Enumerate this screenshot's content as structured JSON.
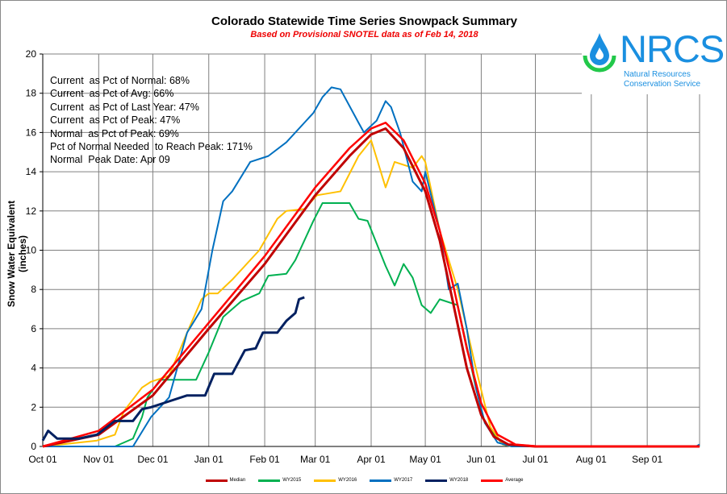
{
  "chart_data": {
    "type": "line",
    "title": "Colorado Statewide Time Series Snowpack Summary",
    "subtitle": "Based on Provisional SNOTEL data as of Feb 14, 2018",
    "xlabel": "",
    "ylabel": "Snow Water Equivalent (inches)",
    "ylim": [
      0,
      20
    ],
    "xlim_days": [
      0,
      364
    ],
    "yticks": [
      "0",
      "2",
      "4",
      "6",
      "8",
      "10",
      "12",
      "14",
      "16",
      "18",
      "20"
    ],
    "xticks": [
      {
        "label": "Oct 01",
        "day": 0
      },
      {
        "label": "Nov 01",
        "day": 31
      },
      {
        "label": "Dec 01",
        "day": 61
      },
      {
        "label": "Jan 01",
        "day": 92
      },
      {
        "label": "Feb 01",
        "day": 123
      },
      {
        "label": "Mar 01",
        "day": 151
      },
      {
        "label": "Apr 01",
        "day": 182
      },
      {
        "label": "May 01",
        "day": 212
      },
      {
        "label": "Jun 01",
        "day": 243
      },
      {
        "label": "Jul 01",
        "day": 273
      },
      {
        "label": "Aug 01",
        "day": 304
      },
      {
        "label": "Sep 01",
        "day": 335
      }
    ],
    "grid": true,
    "legend_position": "bottom",
    "series": [
      {
        "name": "Median",
        "color": "#c00000",
        "width": 3,
        "points": [
          [
            0,
            0
          ],
          [
            31,
            0.6
          ],
          [
            61,
            2.6
          ],
          [
            92,
            6.0
          ],
          [
            123,
            9.3
          ],
          [
            151,
            12.8
          ],
          [
            170,
            14.8
          ],
          [
            182,
            15.9
          ],
          [
            190,
            16.2
          ],
          [
            200,
            15.2
          ],
          [
            212,
            13.0
          ],
          [
            220,
            10.5
          ],
          [
            227,
            7.5
          ],
          [
            235,
            4.0
          ],
          [
            243,
            1.6
          ],
          [
            250,
            0.5
          ],
          [
            258,
            0.1
          ],
          [
            273,
            0
          ],
          [
            364,
            0
          ]
        ]
      },
      {
        "name": "WY2015",
        "color": "#00b050",
        "width": 2,
        "points": [
          [
            0,
            0
          ],
          [
            40,
            0
          ],
          [
            50,
            0.4
          ],
          [
            55,
            1.5
          ],
          [
            58,
            2.5
          ],
          [
            65,
            3.4
          ],
          [
            85,
            3.4
          ],
          [
            92,
            4.8
          ],
          [
            100,
            6.6
          ],
          [
            110,
            7.4
          ],
          [
            120,
            7.8
          ],
          [
            125,
            8.7
          ],
          [
            135,
            8.8
          ],
          [
            140,
            9.5
          ],
          [
            150,
            11.5
          ],
          [
            155,
            12.4
          ],
          [
            170,
            12.4
          ],
          [
            175,
            11.6
          ],
          [
            180,
            11.5
          ],
          [
            190,
            9.2
          ],
          [
            195,
            8.2
          ],
          [
            200,
            9.3
          ],
          [
            205,
            8.6
          ],
          [
            210,
            7.2
          ],
          [
            215,
            6.8
          ],
          [
            220,
            7.5
          ],
          [
            230,
            7.2
          ],
          [
            240,
            3.0
          ],
          [
            245,
            1.2
          ],
          [
            255,
            0.1
          ],
          [
            260,
            0
          ]
        ]
      },
      {
        "name": "WY2016",
        "color": "#ffc000",
        "width": 2,
        "points": [
          [
            0,
            0
          ],
          [
            30,
            0.3
          ],
          [
            40,
            0.6
          ],
          [
            45,
            1.8
          ],
          [
            55,
            3.0
          ],
          [
            60,
            3.3
          ],
          [
            70,
            3.6
          ],
          [
            80,
            5.8
          ],
          [
            88,
            7.5
          ],
          [
            92,
            7.8
          ],
          [
            97,
            7.8
          ],
          [
            105,
            8.5
          ],
          [
            120,
            10.0
          ],
          [
            130,
            11.6
          ],
          [
            135,
            12.0
          ],
          [
            145,
            12.1
          ],
          [
            152,
            12.8
          ],
          [
            165,
            13.0
          ],
          [
            175,
            14.8
          ],
          [
            182,
            15.6
          ],
          [
            190,
            13.2
          ],
          [
            195,
            14.5
          ],
          [
            205,
            14.2
          ],
          [
            210,
            14.8
          ],
          [
            212,
            14.5
          ],
          [
            220,
            11.0
          ],
          [
            230,
            8.0
          ],
          [
            240,
            4.0
          ],
          [
            248,
            1.0
          ],
          [
            255,
            0.1
          ],
          [
            260,
            0
          ],
          [
            364,
            0
          ]
        ]
      },
      {
        "name": "WY2017",
        "color": "#0070c0",
        "width": 2,
        "points": [
          [
            0,
            0
          ],
          [
            50,
            0
          ],
          [
            60,
            1.5
          ],
          [
            70,
            2.5
          ],
          [
            80,
            5.8
          ],
          [
            88,
            7.0
          ],
          [
            94,
            10.0
          ],
          [
            100,
            12.5
          ],
          [
            105,
            13.0
          ],
          [
            115,
            14.5
          ],
          [
            125,
            14.8
          ],
          [
            135,
            15.5
          ],
          [
            150,
            17.0
          ],
          [
            155,
            17.8
          ],
          [
            160,
            18.3
          ],
          [
            165,
            18.2
          ],
          [
            175,
            16.5
          ],
          [
            178,
            16.0
          ],
          [
            185,
            16.6
          ],
          [
            190,
            17.6
          ],
          [
            193,
            17.3
          ],
          [
            198,
            16.0
          ],
          [
            205,
            13.5
          ],
          [
            210,
            13.0
          ],
          [
            212,
            14.0
          ],
          [
            220,
            11.0
          ],
          [
            225,
            8.0
          ],
          [
            230,
            8.3
          ],
          [
            235,
            6.0
          ],
          [
            240,
            3.0
          ],
          [
            245,
            1.2
          ],
          [
            252,
            0.2
          ],
          [
            260,
            0
          ],
          [
            362,
            0
          ],
          [
            364,
            0.1
          ]
        ]
      },
      {
        "name": "WY2018",
        "color": "#002060",
        "width": 3,
        "points": [
          [
            0,
            0.3
          ],
          [
            3,
            0.8
          ],
          [
            8,
            0.4
          ],
          [
            20,
            0.4
          ],
          [
            30,
            0.6
          ],
          [
            40,
            1.3
          ],
          [
            50,
            1.3
          ],
          [
            55,
            1.9
          ],
          [
            60,
            2.0
          ],
          [
            70,
            2.3
          ],
          [
            80,
            2.6
          ],
          [
            90,
            2.6
          ],
          [
            95,
            3.7
          ],
          [
            105,
            3.7
          ],
          [
            112,
            4.9
          ],
          [
            118,
            5.0
          ],
          [
            122,
            5.8
          ],
          [
            130,
            5.8
          ],
          [
            135,
            6.4
          ],
          [
            140,
            6.8
          ],
          [
            142,
            7.5
          ],
          [
            145,
            7.6
          ]
        ]
      },
      {
        "name": "Average",
        "color": "#ff0000",
        "width": 2.5,
        "points": [
          [
            0,
            0
          ],
          [
            31,
            0.8
          ],
          [
            61,
            2.9
          ],
          [
            92,
            6.3
          ],
          [
            123,
            9.7
          ],
          [
            151,
            13.2
          ],
          [
            170,
            15.2
          ],
          [
            182,
            16.2
          ],
          [
            190,
            16.5
          ],
          [
            200,
            15.6
          ],
          [
            212,
            13.4
          ],
          [
            220,
            11.0
          ],
          [
            228,
            8.0
          ],
          [
            235,
            5.0
          ],
          [
            243,
            2.2
          ],
          [
            252,
            0.6
          ],
          [
            262,
            0.1
          ],
          [
            275,
            0
          ],
          [
            364,
            0
          ]
        ]
      }
    ]
  },
  "stats": [
    "Current  as Pct of Normal: 68%",
    "Current  as Pct of Avg: 66%",
    "Current  as Pct of Last Year: 47%",
    "Current  as Pct of Peak: 47%",
    "Normal  as Pct of Peak: 69%",
    "Pct of Normal Needed  to Reach Peak: 171%",
    "Normal  Peak Date: Apr 09"
  ],
  "logo": {
    "name": "NRCS",
    "line1": "Natural Resources",
    "line2": "Conservation Service"
  }
}
